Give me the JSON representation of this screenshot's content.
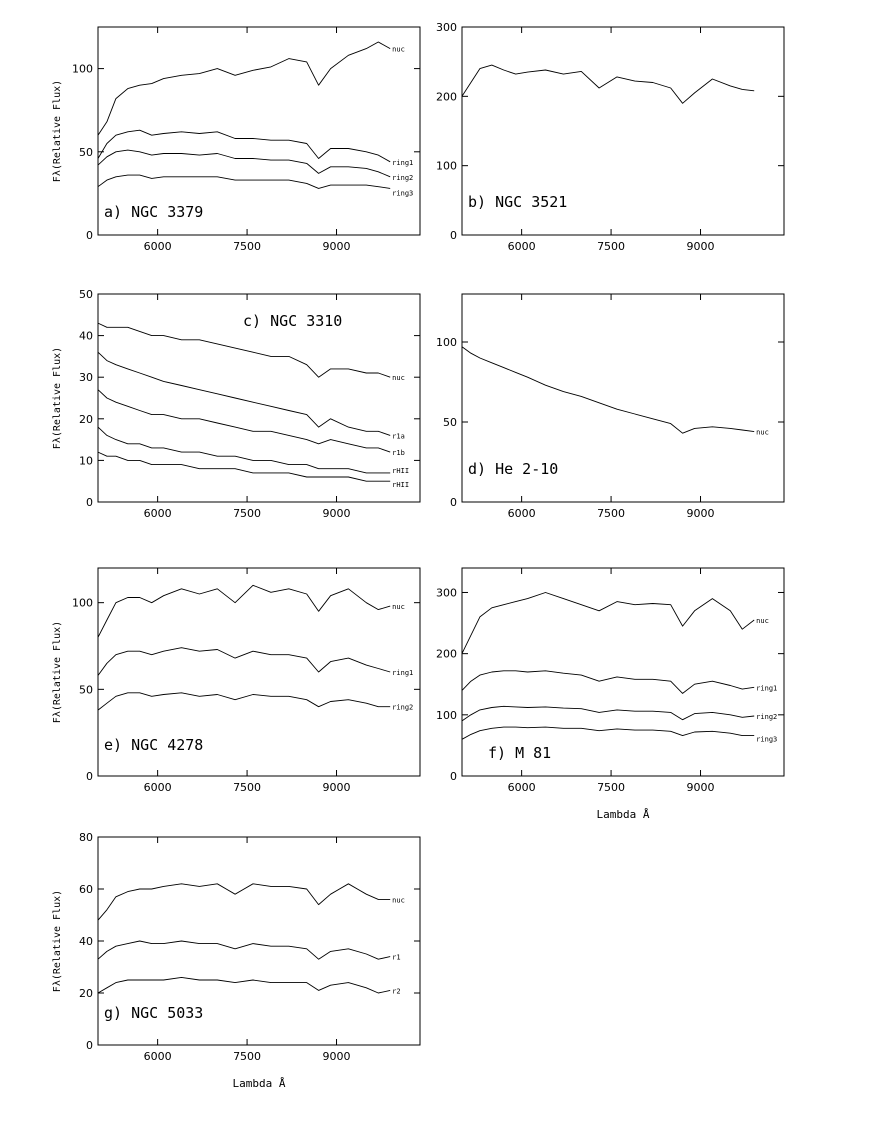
{
  "colors": {
    "line": "#000000",
    "background": "#ffffff"
  },
  "chart_data": [
    {
      "type": "line",
      "title": "a) NGC 3379",
      "xlabel": "",
      "ylabel": "Fλ(Relative Flux)",
      "xlim": [
        5000,
        10400
      ],
      "ylim": [
        0,
        125
      ],
      "xticks": [
        "6000",
        "7500",
        "9000"
      ],
      "yticks": [
        "0",
        "50",
        "100"
      ],
      "x": [
        5000,
        5150,
        5300,
        5500,
        5700,
        5900,
        6100,
        6400,
        6700,
        7000,
        7300,
        7600,
        7900,
        8200,
        8500,
        8700,
        8900,
        9200,
        9500,
        9700,
        9900
      ],
      "series": [
        {
          "name": "nuc",
          "values": [
            60,
            68,
            82,
            88,
            90,
            91,
            94,
            96,
            97,
            100,
            96,
            99,
            101,
            106,
            104,
            90,
            100,
            108,
            112,
            116,
            112
          ]
        },
        {
          "name": "ring1",
          "values": [
            46,
            55,
            60,
            62,
            63,
            60,
            61,
            62,
            61,
            62,
            58,
            58,
            57,
            57,
            55,
            46,
            52,
            52,
            50,
            48,
            44
          ]
        },
        {
          "name": "ring2",
          "values": [
            42,
            47,
            50,
            51,
            50,
            48,
            49,
            49,
            48,
            49,
            46,
            46,
            45,
            45,
            43,
            37,
            41,
            41,
            40,
            38,
            35
          ]
        },
        {
          "name": "ring3",
          "values": [
            29,
            33,
            35,
            36,
            36,
            34,
            35,
            35,
            35,
            35,
            33,
            33,
            33,
            33,
            31,
            28,
            30,
            30,
            30,
            29,
            28
          ]
        }
      ]
    },
    {
      "type": "line",
      "title": "b) NGC 3521",
      "xlabel": "",
      "ylabel": "",
      "xlim": [
        5000,
        10400
      ],
      "ylim": [
        0,
        300
      ],
      "xticks": [
        "6000",
        "7500",
        "9000"
      ],
      "yticks": [
        "0",
        "100",
        "200",
        "300"
      ],
      "x": [
        5000,
        5150,
        5300,
        5500,
        5700,
        5900,
        6100,
        6400,
        6700,
        7000,
        7300,
        7600,
        7900,
        8200,
        8500,
        8700,
        8900,
        9200,
        9500,
        9700,
        9900
      ],
      "series": [
        {
          "name": "",
          "values": [
            200,
            220,
            240,
            245,
            238,
            232,
            235,
            238,
            232,
            236,
            212,
            228,
            222,
            220,
            212,
            190,
            205,
            225,
            215,
            210,
            208
          ]
        }
      ]
    },
    {
      "type": "line",
      "title": "c) NGC 3310",
      "xlabel": "",
      "ylabel": "Fλ(Relative Flux)",
      "xlim": [
        5000,
        10400
      ],
      "ylim": [
        0,
        50
      ],
      "xticks": [
        "6000",
        "7500",
        "9000"
      ],
      "yticks": [
        "0",
        "10",
        "20",
        "30",
        "40",
        "50"
      ],
      "x": [
        5000,
        5150,
        5300,
        5500,
        5700,
        5900,
        6100,
        6400,
        6700,
        7000,
        7300,
        7600,
        7900,
        8200,
        8500,
        8700,
        8900,
        9200,
        9500,
        9700,
        9900
      ],
      "series": [
        {
          "name": "nuc",
          "values": [
            43,
            42,
            42,
            42,
            41,
            40,
            40,
            39,
            39,
            38,
            37,
            36,
            35,
            35,
            33,
            30,
            32,
            32,
            31,
            31,
            30
          ]
        },
        {
          "name": "r1a",
          "values": [
            36,
            34,
            33,
            32,
            31,
            30,
            29,
            28,
            27,
            26,
            25,
            24,
            23,
            22,
            21,
            18,
            20,
            18,
            17,
            17,
            16
          ]
        },
        {
          "name": "r1b",
          "values": [
            27,
            25,
            24,
            23,
            22,
            21,
            21,
            20,
            20,
            19,
            18,
            17,
            17,
            16,
            15,
            14,
            15,
            14,
            13,
            13,
            12
          ]
        },
        {
          "name": "rHII",
          "values": [
            18,
            16,
            15,
            14,
            14,
            13,
            13,
            12,
            12,
            11,
            11,
            10,
            10,
            9,
            9,
            8,
            8,
            8,
            7,
            7,
            7
          ]
        },
        {
          "name": "rHII",
          "values": [
            12,
            11,
            11,
            10,
            10,
            9,
            9,
            9,
            8,
            8,
            8,
            7,
            7,
            7,
            6,
            6,
            6,
            6,
            5,
            5,
            5
          ]
        }
      ]
    },
    {
      "type": "line",
      "title": "d) He 2-10",
      "xlabel": "",
      "ylabel": "",
      "xlim": [
        5000,
        10400
      ],
      "ylim": [
        0,
        130
      ],
      "xticks": [
        "6000",
        "7500",
        "9000"
      ],
      "yticks": [
        "0",
        "50",
        "100"
      ],
      "x": [
        5000,
        5150,
        5300,
        5500,
        5700,
        5900,
        6100,
        6400,
        6700,
        7000,
        7300,
        7600,
        7900,
        8200,
        8500,
        8700,
        8900,
        9200,
        9500,
        9700,
        9900
      ],
      "series": [
        {
          "name": "nuc",
          "values": [
            97,
            93,
            90,
            87,
            84,
            81,
            78,
            73,
            69,
            66,
            62,
            58,
            55,
            52,
            49,
            43,
            46,
            47,
            46,
            45,
            44
          ]
        }
      ]
    },
    {
      "type": "line",
      "title": "e) NGC 4278",
      "xlabel": "",
      "ylabel": "Fλ(Relative Flux)",
      "xlim": [
        5000,
        10400
      ],
      "ylim": [
        0,
        120
      ],
      "xticks": [
        "6000",
        "7500",
        "9000"
      ],
      "yticks": [
        "0",
        "50",
        "100"
      ],
      "x": [
        5000,
        5150,
        5300,
        5500,
        5700,
        5900,
        6100,
        6400,
        6700,
        7000,
        7300,
        7600,
        7900,
        8200,
        8500,
        8700,
        8900,
        9200,
        9500,
        9700,
        9900
      ],
      "series": [
        {
          "name": "nuc",
          "values": [
            80,
            90,
            100,
            103,
            103,
            100,
            104,
            108,
            105,
            108,
            100,
            110,
            106,
            108,
            105,
            95,
            104,
            108,
            100,
            96,
            98
          ]
        },
        {
          "name": "ring1",
          "values": [
            58,
            65,
            70,
            72,
            72,
            70,
            72,
            74,
            72,
            73,
            68,
            72,
            70,
            70,
            68,
            60,
            66,
            68,
            64,
            62,
            60
          ]
        },
        {
          "name": "ring2",
          "values": [
            38,
            42,
            46,
            48,
            48,
            46,
            47,
            48,
            46,
            47,
            44,
            47,
            46,
            46,
            44,
            40,
            43,
            44,
            42,
            40,
            40
          ]
        }
      ]
    },
    {
      "type": "line",
      "title": "f) M 81",
      "xlabel": "Lambda Å",
      "ylabel": "",
      "xlim": [
        5000,
        10400
      ],
      "ylim": [
        0,
        340
      ],
      "xticks": [
        "6000",
        "7500",
        "9000"
      ],
      "yticks": [
        "0",
        "100",
        "200",
        "300"
      ],
      "x": [
        5000,
        5150,
        5300,
        5500,
        5700,
        5900,
        6100,
        6400,
        6700,
        7000,
        7300,
        7600,
        7900,
        8200,
        8500,
        8700,
        8900,
        9200,
        9500,
        9700,
        9900
      ],
      "series": [
        {
          "name": "nuc",
          "values": [
            200,
            230,
            260,
            275,
            280,
            285,
            290,
            300,
            290,
            280,
            270,
            285,
            280,
            282,
            280,
            245,
            270,
            290,
            270,
            240,
            255
          ]
        },
        {
          "name": "ring1",
          "values": [
            140,
            155,
            165,
            170,
            172,
            172,
            170,
            172,
            168,
            165,
            155,
            162,
            158,
            158,
            155,
            135,
            150,
            155,
            148,
            142,
            145
          ]
        },
        {
          "name": "ring2",
          "values": [
            90,
            100,
            108,
            112,
            114,
            113,
            112,
            113,
            111,
            110,
            104,
            108,
            106,
            106,
            104,
            92,
            102,
            104,
            100,
            96,
            98
          ]
        },
        {
          "name": "ring3",
          "values": [
            60,
            68,
            74,
            78,
            80,
            80,
            79,
            80,
            78,
            78,
            74,
            77,
            75,
            75,
            73,
            66,
            72,
            73,
            70,
            66,
            66
          ]
        }
      ]
    },
    {
      "type": "line",
      "title": "g) NGC 5033",
      "xlabel": "Lambda Å",
      "ylabel": "Fλ(Relative Flux)",
      "xlim": [
        5000,
        10400
      ],
      "ylim": [
        0,
        80
      ],
      "xticks": [
        "6000",
        "7500",
        "9000"
      ],
      "yticks": [
        "0",
        "20",
        "40",
        "60",
        "80"
      ],
      "x": [
        5000,
        5150,
        5300,
        5500,
        5700,
        5900,
        6100,
        6400,
        6700,
        7000,
        7300,
        7600,
        7900,
        8200,
        8500,
        8700,
        8900,
        9200,
        9500,
        9700,
        9900
      ],
      "series": [
        {
          "name": "nuc",
          "values": [
            48,
            52,
            57,
            59,
            60,
            60,
            61,
            62,
            61,
            62,
            58,
            62,
            61,
            61,
            60,
            54,
            58,
            62,
            58,
            56,
            56
          ]
        },
        {
          "name": "r1",
          "values": [
            33,
            36,
            38,
            39,
            40,
            39,
            39,
            40,
            39,
            39,
            37,
            39,
            38,
            38,
            37,
            33,
            36,
            37,
            35,
            33,
            34
          ]
        },
        {
          "name": "r2",
          "values": [
            20,
            22,
            24,
            25,
            25,
            25,
            25,
            26,
            25,
            25,
            24,
            25,
            24,
            24,
            24,
            21,
            23,
            24,
            22,
            20,
            21
          ]
        }
      ]
    }
  ]
}
